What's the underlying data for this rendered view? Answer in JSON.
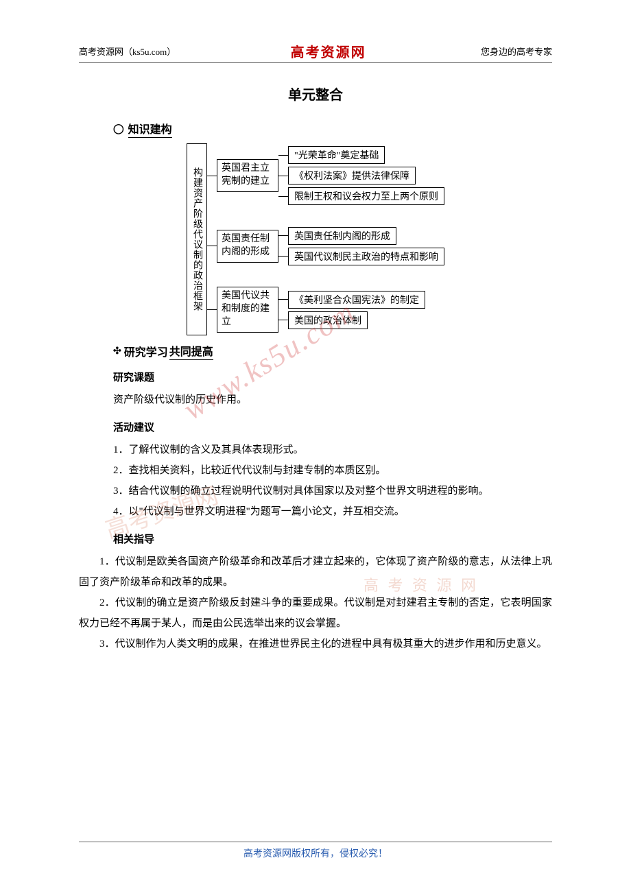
{
  "header": {
    "left": "高考资源网（ks5u.com）",
    "center": "高考资源网",
    "right": "您身边的高考专家"
  },
  "title": "单元整合",
  "section1": {
    "icon": "◯",
    "label": "知识建构"
  },
  "diagram": {
    "root": "构建资产阶级代议制的政治框架",
    "branch1": {
      "label": "英国君主立宪制的建立",
      "leaf1": "\"光荣革命\"奠定基础",
      "leaf2": "《权利法案》提供法律保障",
      "leaf3": "限制王权和议会权力至上两个原则"
    },
    "branch2": {
      "label": "英国责任制内阁的形成",
      "leaf1": "英国责任制内阁的形成",
      "leaf2": "英国代议制民主政治的特点和影响"
    },
    "branch3": {
      "label": "美国代议共和制度的建立",
      "leaf1": "《美利坚合众国宪法》的制定",
      "leaf2": "美国的政治体制"
    }
  },
  "section2": {
    "icon": "✣",
    "label1": "研究学习",
    "label2": "共同提高"
  },
  "heading_topic": "研究课题",
  "topic_text": "资产阶级代议制的历史作用。",
  "heading_activity": "活动建议",
  "activity": {
    "l1": "1．了解代议制的含义及其具体表现形式。",
    "l2": "2．查找相关资料，比较近代代议制与封建专制的本质区别。",
    "l3": "3．结合代议制的确立过程说明代议制对具体国家以及对整个世界文明进程的影响。",
    "l4": "4．以\"代议制与世界文明进程\"为题写一篇小论文，并互相交流。"
  },
  "heading_guide": "相关指导",
  "guide": {
    "p1": "1．代议制是欧美各国资产阶级革命和改革后才建立起来的，它体现了资产阶级的意志，从法律上巩固了资产阶级革命和改革的成果。",
    "p2": "2．代议制的确立是资产阶级反封建斗争的重要成果。代议制是对封建君主专制的否定，它表明国家权力已经不再属于某人，而是由公民选举出来的议会掌握。",
    "p3": "3．代议制作为人类文明的成果，在推进世界民主化的进程中具有极其重大的进步作用和历史意义。"
  },
  "footer": "高考资源网版权所有，侵权必究！",
  "watermarks": {
    "w1": "www.ks5u.com",
    "w2": "高考资源网",
    "w3": "高 考 资 源 网"
  },
  "colors": {
    "brand_red": "#c00000",
    "text": "#000000",
    "footer": "#2a5db0",
    "border": "#000000"
  }
}
